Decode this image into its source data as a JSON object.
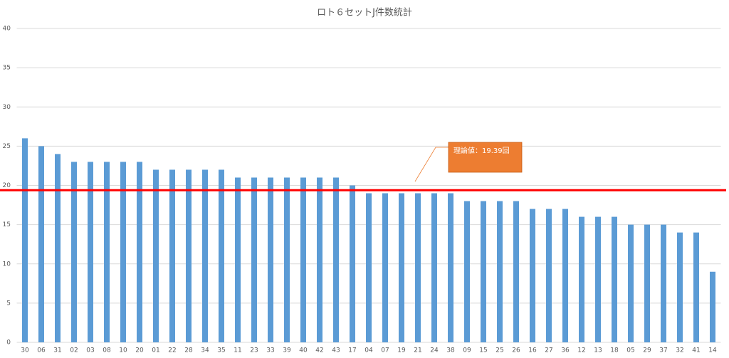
{
  "chart_data": {
    "type": "bar",
    "title": "ロト６セットJ件数統計",
    "categories": [
      "30",
      "06",
      "31",
      "02",
      "03",
      "08",
      "10",
      "20",
      "01",
      "22",
      "28",
      "34",
      "35",
      "11",
      "23",
      "33",
      "39",
      "40",
      "42",
      "43",
      "17",
      "04",
      "07",
      "19",
      "21",
      "24",
      "38",
      "09",
      "15",
      "25",
      "26",
      "16",
      "27",
      "36",
      "12",
      "13",
      "18",
      "05",
      "29",
      "37",
      "32",
      "41",
      "14"
    ],
    "values": [
      26,
      25,
      24,
      23,
      23,
      23,
      23,
      23,
      22,
      22,
      22,
      22,
      22,
      21,
      21,
      21,
      21,
      21,
      21,
      21,
      20,
      19,
      19,
      19,
      19,
      19,
      19,
      18,
      18,
      18,
      18,
      17,
      17,
      17,
      16,
      16,
      16,
      15,
      15,
      15,
      14,
      14,
      9
    ],
    "color": "#5b9bd5",
    "ylim": [
      0,
      40
    ],
    "yticks": [
      0,
      5,
      10,
      15,
      20,
      25,
      30,
      35,
      40
    ],
    "grid": true,
    "reference_line": {
      "value": 19.39,
      "label": "理論値：19.39回",
      "color": "#ff0000",
      "label_color": "#ed7d31"
    }
  }
}
